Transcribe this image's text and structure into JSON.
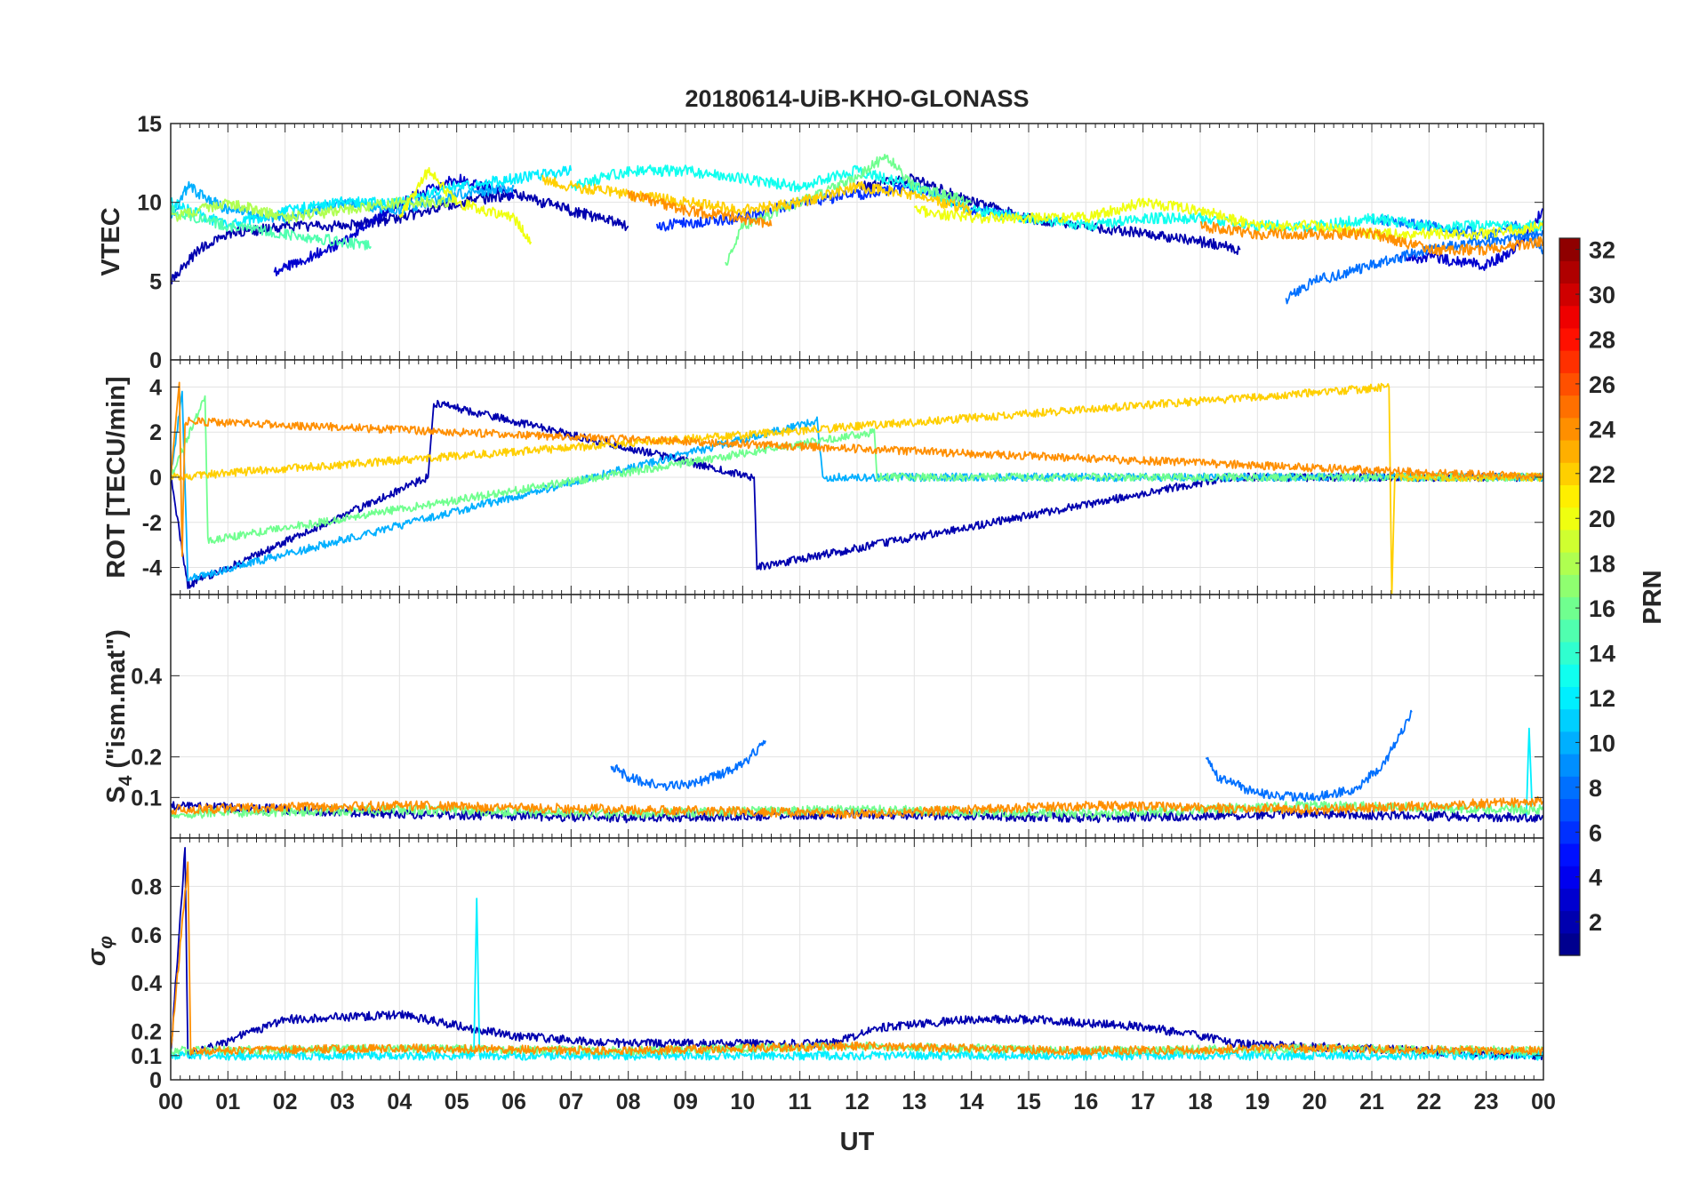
{
  "figure": {
    "title": "20180614-UiB-KHO-GLONASS"
  },
  "chart_data": [
    {
      "type": "line",
      "panel": "vtec",
      "ylabel": "VTEC",
      "ylim": [
        0,
        15
      ],
      "yticks": [
        0,
        5,
        10,
        15
      ],
      "xlim": [
        0,
        24
      ],
      "series": [
        {
          "prn": 2,
          "x": [
            0,
            0.5,
            1,
            2,
            3,
            4,
            5,
            6,
            7,
            8
          ],
          "y": [
            5,
            7,
            8,
            8.5,
            8.5,
            9,
            10,
            10.5,
            9.5,
            8.5
          ]
        },
        {
          "prn": 3,
          "x": [
            1.8,
            3,
            4,
            5,
            6
          ],
          "y": [
            5.5,
            7.5,
            10,
            11.5,
            10.5
          ]
        },
        {
          "prn": 2,
          "x": [
            12,
            13,
            14,
            15,
            16,
            17,
            18,
            18.7
          ],
          "y": [
            11,
            11.5,
            10,
            9,
            8.5,
            8,
            7.5,
            7
          ]
        },
        {
          "prn": 3,
          "x": [
            21.5,
            22,
            23,
            23.5,
            24
          ],
          "y": [
            6.5,
            6.5,
            6,
            7,
            9.5
          ]
        },
        {
          "prn": 8,
          "x": [
            19.5,
            20,
            21,
            22,
            23,
            24
          ],
          "y": [
            3.8,
            5,
            6,
            7,
            7.5,
            8
          ]
        },
        {
          "prn": 6,
          "x": [
            8.5,
            10,
            11,
            12,
            13,
            14,
            15
          ],
          "y": [
            8.5,
            9,
            10,
            10.5,
            11,
            9.5,
            9
          ]
        },
        {
          "prn": 8,
          "x": [
            21,
            22,
            23,
            23.5,
            24
          ],
          "y": [
            9,
            8.5,
            8,
            8.5,
            7
          ]
        },
        {
          "prn": 10,
          "x": [
            0,
            0.3,
            1,
            2,
            3,
            4,
            5,
            6
          ],
          "y": [
            9,
            11,
            9.5,
            9,
            10,
            9.5,
            10.5,
            11
          ]
        },
        {
          "prn": 12,
          "x": [
            0,
            1,
            2,
            3,
            4,
            5,
            6,
            7
          ],
          "y": [
            10,
            8.5,
            9.5,
            10,
            10,
            11,
            11.5,
            12
          ]
        },
        {
          "prn": 13,
          "x": [
            7,
            8,
            9,
            10,
            11,
            12,
            13,
            14,
            15,
            16,
            17,
            18,
            19,
            20,
            21,
            22,
            23,
            24
          ],
          "y": [
            11,
            12,
            12,
            11.5,
            11,
            12,
            11,
            9.5,
            9,
            8.5,
            9,
            9,
            8.5,
            8.5,
            9,
            8.5,
            8.5,
            8.5
          ]
        },
        {
          "prn": 15,
          "x": [
            0,
            1,
            2,
            3,
            3.5
          ],
          "y": [
            9.5,
            8.5,
            8,
            7.5,
            7.2
          ]
        },
        {
          "prn": 16,
          "x": [
            9.7,
            10,
            11,
            12,
            12.5,
            13,
            14
          ],
          "y": [
            6,
            8.5,
            10,
            11.5,
            13,
            11,
            10
          ]
        },
        {
          "prn": 18,
          "x": [
            0,
            1,
            2,
            3,
            4,
            5
          ],
          "y": [
            9,
            10,
            9,
            9.5,
            10,
            10
          ]
        },
        {
          "prn": 20,
          "x": [
            4,
            4.5,
            5,
            6,
            6.3
          ],
          "y": [
            9,
            12,
            10,
            9,
            7.5
          ]
        },
        {
          "prn": 20,
          "x": [
            13,
            14,
            15,
            16,
            17,
            18,
            19,
            20,
            21,
            22,
            23,
            24
          ],
          "y": [
            9.5,
            9,
            9,
            9,
            10,
            9.5,
            8.5,
            8.5,
            8,
            8,
            8,
            8.5
          ]
        },
        {
          "prn": 22,
          "x": [
            6.5,
            7,
            8,
            9,
            10,
            11,
            12,
            13,
            14
          ],
          "y": [
            11.5,
            11,
            10.5,
            10,
            9.5,
            10,
            11,
            10.5,
            9.5
          ]
        },
        {
          "prn": 24,
          "x": [
            18,
            19,
            20,
            21,
            22,
            23,
            24
          ],
          "y": [
            8.5,
            8,
            8,
            8,
            7,
            7,
            7.5
          ]
        },
        {
          "prn": 24,
          "x": [
            8,
            8.5,
            9,
            10,
            10.5
          ],
          "y": [
            10.5,
            10,
            9.5,
            9,
            8.5
          ]
        }
      ]
    },
    {
      "type": "line",
      "panel": "rot",
      "ylabel": "ROT [TECU/min]",
      "ylim": [
        -5.2,
        5.2
      ],
      "yticks": [
        -4,
        -2,
        0,
        2,
        4
      ],
      "xlim": [
        0,
        24
      ],
      "series": [
        {
          "prn": 2,
          "x": [
            0,
            0.3,
            4.5,
            4.6,
            10.2,
            10.25,
            18.5,
            21,
            24
          ],
          "y": [
            0,
            -4.8,
            0,
            3.3,
            0,
            -4,
            0,
            0,
            0
          ]
        },
        {
          "prn": 10,
          "x": [
            0,
            0.2,
            0.3,
            11.3,
            11.4,
            24
          ],
          "y": [
            0,
            3.8,
            -4.5,
            2.5,
            0,
            0
          ]
        },
        {
          "prn": 16,
          "x": [
            0,
            0.6,
            0.65,
            12.3,
            12.35,
            24
          ],
          "y": [
            0,
            3.6,
            -2.8,
            2,
            0,
            0
          ]
        },
        {
          "prn": 22,
          "x": [
            0,
            21.3,
            21.35,
            21.4,
            24
          ],
          "y": [
            0,
            4,
            -5.2,
            0,
            0
          ]
        },
        {
          "prn": 24,
          "x": [
            0,
            0.15,
            0.2,
            0.25,
            24
          ],
          "y": [
            0,
            4.2,
            -3.5,
            2.5,
            0
          ]
        }
      ]
    },
    {
      "type": "line",
      "panel": "s4",
      "ylabel": "S4 (\"ism.mat\")",
      "ylabel_main": "S",
      "ylabel_sub": "4",
      "ylabel_rest": " (\"ism.mat\")",
      "ylim": [
        0,
        0.6
      ],
      "yticks": [
        0.1,
        0.2,
        0.4
      ],
      "xlim": [
        0,
        24
      ],
      "series": [
        {
          "prn": 8,
          "x": [
            7.7,
            8,
            8.5,
            9,
            9.5,
            10,
            10.4
          ],
          "y": [
            0.18,
            0.15,
            0.13,
            0.13,
            0.15,
            0.18,
            0.24
          ]
        },
        {
          "prn": 8,
          "x": [
            18.1,
            18.3,
            19,
            20,
            20.7,
            21.2,
            21.7
          ],
          "y": [
            0.2,
            0.15,
            0.11,
            0.1,
            0.12,
            0.18,
            0.31
          ]
        },
        {
          "prn": 12,
          "x": [
            23.7,
            23.75,
            23.8
          ],
          "y": [
            0.05,
            0.27,
            0.08
          ]
        },
        {
          "prn": 2,
          "x": [
            0,
            4,
            8,
            12,
            16,
            20,
            24
          ],
          "y": [
            0.08,
            0.06,
            0.05,
            0.06,
            0.05,
            0.06,
            0.05
          ]
        },
        {
          "prn": 16,
          "x": [
            0,
            4,
            8,
            12,
            16,
            20,
            24
          ],
          "y": [
            0.06,
            0.07,
            0.06,
            0.07,
            0.06,
            0.08,
            0.07
          ]
        },
        {
          "prn": 24,
          "x": [
            0,
            4,
            8,
            12,
            16,
            20,
            24
          ],
          "y": [
            0.07,
            0.08,
            0.07,
            0.06,
            0.08,
            0.07,
            0.09
          ]
        }
      ]
    },
    {
      "type": "line",
      "panel": "sigma",
      "ylabel": "σφ",
      "ylabel_main": "σ",
      "ylabel_sub": "φ",
      "ylim": [
        0,
        1
      ],
      "yticks": [
        0,
        0.1,
        0.2,
        0.4,
        0.6,
        0.8
      ],
      "xlim": [
        0,
        24
      ],
      "series": [
        {
          "prn": 2,
          "x": [
            0,
            0.25,
            0.3,
            2,
            4,
            6,
            8,
            11.5,
            12.5,
            14,
            15,
            17,
            18,
            18.6,
            24
          ],
          "y": [
            0.1,
            0.96,
            0.1,
            0.25,
            0.27,
            0.18,
            0.15,
            0.15,
            0.22,
            0.25,
            0.25,
            0.22,
            0.18,
            0.15,
            0.1
          ]
        },
        {
          "prn": 12,
          "x": [
            0,
            5.3,
            5.35,
            5.4,
            24
          ],
          "y": [
            0.1,
            0.1,
            0.75,
            0.1,
            0.1
          ]
        },
        {
          "prn": 16,
          "x": [
            0,
            4,
            8,
            12,
            16,
            20,
            24
          ],
          "y": [
            0.12,
            0.13,
            0.12,
            0.14,
            0.12,
            0.13,
            0.12
          ]
        },
        {
          "prn": 24,
          "x": [
            0,
            0.3,
            0.35,
            4,
            8,
            12,
            16,
            20,
            24
          ],
          "y": [
            0.12,
            0.9,
            0.12,
            0.13,
            0.12,
            0.14,
            0.12,
            0.13,
            0.12
          ]
        }
      ]
    }
  ],
  "x_axis": {
    "label": "UT",
    "tick_labels": [
      "00",
      "01",
      "02",
      "03",
      "04",
      "05",
      "06",
      "07",
      "08",
      "09",
      "10",
      "11",
      "12",
      "13",
      "14",
      "15",
      "16",
      "17",
      "18",
      "19",
      "20",
      "21",
      "22",
      "23",
      "00"
    ]
  },
  "colorbar": {
    "label": "PRN",
    "range": [
      1,
      32
    ],
    "tick_labels": [
      "2",
      "4",
      "6",
      "8",
      "10",
      "12",
      "14",
      "16",
      "18",
      "20",
      "22",
      "24",
      "26",
      "28",
      "30",
      "32"
    ],
    "colormap": "jet"
  }
}
